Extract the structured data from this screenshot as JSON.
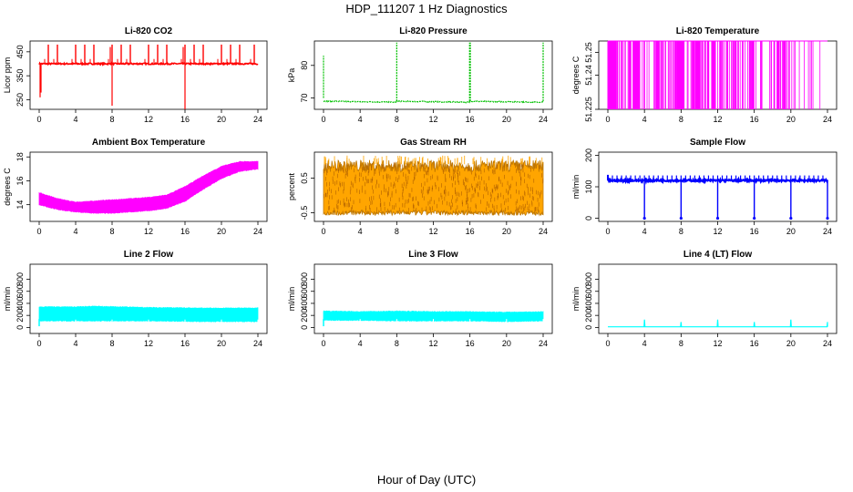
{
  "figure": {
    "title": "HDP_111207  1 Hz Diagnostics",
    "x_label": "Hour of Day (UTC)"
  },
  "chart_data": [
    {
      "id": "co2",
      "type": "line",
      "title": "Li-820 CO2",
      "ylabel": "Licor ppm",
      "color": "#ff0000",
      "xlim": [
        0,
        24
      ],
      "ylim": [
        210,
        495
      ],
      "yticks": [
        250,
        350,
        450
      ],
      "x": [
        0,
        0.1,
        0.2,
        1,
        2,
        2.3,
        3,
        4,
        5,
        6,
        7,
        7.9,
        8,
        8.1,
        9,
        10,
        11,
        12,
        13,
        14,
        15,
        15.9,
        16,
        16.1,
        17,
        18,
        19,
        20,
        21,
        22,
        23,
        24
      ],
      "y": [
        260,
        400,
        400,
        400,
        400,
        475,
        400,
        400,
        400,
        400,
        400,
        400,
        225,
        400,
        400,
        400,
        400,
        400,
        400,
        400,
        400,
        400,
        205,
        400,
        400,
        400,
        400,
        400,
        400,
        400,
        400,
        380
      ],
      "spikes": {
        "x": [
          1,
          2,
          4,
          5,
          6,
          8,
          9,
          10,
          12,
          13,
          14,
          16,
          17,
          18,
          20,
          21,
          22,
          23.6
        ],
        "y": 480
      }
    },
    {
      "id": "pressure",
      "type": "line",
      "title": "Li-820 Pressure",
      "ylabel": "kPa",
      "color": "#00c000",
      "xlim": [
        0,
        24
      ],
      "ylim": [
        66.5,
        87.5
      ],
      "yticks": [
        70,
        80
      ],
      "x": [
        0,
        0.05,
        0.1,
        4,
        7.95,
        8,
        8.05,
        12,
        15.95,
        16,
        16.05,
        20,
        23.95,
        24
      ],
      "y": [
        83,
        70,
        69,
        68.8,
        69,
        87,
        69,
        69,
        69,
        87,
        69,
        68.8,
        68.5,
        87
      ]
    },
    {
      "id": "licor_temp",
      "type": "line",
      "title": "Li-820 Temperature",
      "ylabel": "degrees C",
      "color": "#ff00ff",
      "xlim": [
        0,
        24
      ],
      "ylim": [
        51.225,
        51.255
      ],
      "yticks": [
        51.225,
        51.24,
        51.25
      ],
      "note": "value toggles between 51.225 and 51.255"
    },
    {
      "id": "box_temp",
      "type": "area",
      "title": "Ambient Box Temperature",
      "ylabel": "degrees C",
      "color": "#ff00ff",
      "xlim": [
        0,
        24
      ],
      "ylim": [
        12.6,
        18.4
      ],
      "yticks": [
        14,
        16,
        18
      ],
      "x": [
        0,
        2,
        4,
        6,
        8,
        10,
        12,
        14,
        16,
        18,
        20,
        22,
        24
      ],
      "upper": [
        15,
        14.5,
        14.2,
        14.3,
        14.4,
        14.5,
        14.6,
        14.8,
        15.5,
        16.4,
        17.2,
        17.6,
        17.6
      ],
      "lower": [
        14,
        13.6,
        13.4,
        13.3,
        13.3,
        13.4,
        13.5,
        13.7,
        14.3,
        15.3,
        16.2,
        16.8,
        17
      ]
    },
    {
      "id": "rh",
      "type": "area",
      "title": "Gas Stream RH",
      "ylabel": "percent",
      "color": "#ffa500",
      "xlim": [
        0,
        24
      ],
      "ylim": [
        -0.75,
        1.25
      ],
      "yticks": [
        -0.5,
        0.5
      ],
      "upper": 0.85,
      "lower": -0.5
    },
    {
      "id": "sample_flow",
      "type": "line",
      "title": "Sample Flow",
      "ylabel": "ml/min",
      "color": "#0000ff",
      "xlim": [
        0,
        24
      ],
      "ylim": [
        -10,
        210
      ],
      "yticks": [
        0,
        100,
        200
      ],
      "level": 120,
      "dips_x": [
        4,
        8,
        12,
        16,
        20,
        24
      ],
      "dip_y": 0
    },
    {
      "id": "line2_flow",
      "type": "area",
      "title": "Line 2 Flow",
      "ylabel": "ml/min",
      "color": "#00ffff",
      "xlim": [
        0,
        24
      ],
      "ylim": [
        -100,
        1050
      ],
      "yticks": [
        0,
        200,
        400,
        600,
        800
      ],
      "x": [
        0,
        4,
        6,
        12,
        18,
        24
      ],
      "upper": [
        340,
        340,
        350,
        330,
        320,
        320
      ],
      "lower": [
        110,
        110,
        110,
        110,
        100,
        100
      ]
    },
    {
      "id": "line3_flow",
      "type": "area",
      "title": "Line 3 Flow",
      "ylabel": "ml/min",
      "color": "#00ffff",
      "xlim": [
        0,
        24
      ],
      "ylim": [
        -100,
        1050
      ],
      "yticks": [
        0,
        200,
        400,
        600,
        800
      ],
      "x": [
        0,
        4,
        8,
        12,
        16,
        20,
        24
      ],
      "upper": [
        270,
        260,
        270,
        260,
        260,
        250,
        260
      ],
      "lower": [
        120,
        120,
        110,
        110,
        110,
        100,
        110
      ]
    },
    {
      "id": "line4_flow",
      "type": "line",
      "title": "Line 4 (LT) Flow",
      "ylabel": "ml/min",
      "color": "#00ffff",
      "xlim": [
        0,
        24
      ],
      "ylim": [
        -100,
        1050
      ],
      "yticks": [
        0,
        200,
        400,
        600,
        800
      ],
      "x": [
        0,
        3.95,
        4,
        4.05,
        7.95,
        8,
        8.05,
        11.95,
        12,
        12.05,
        15.95,
        16,
        16.05,
        19.95,
        20,
        20.05,
        23.95,
        24,
        24
      ],
      "y": [
        10,
        10,
        130,
        10,
        10,
        90,
        10,
        10,
        130,
        10,
        10,
        90,
        10,
        10,
        130,
        10,
        10,
        90,
        10
      ]
    }
  ]
}
